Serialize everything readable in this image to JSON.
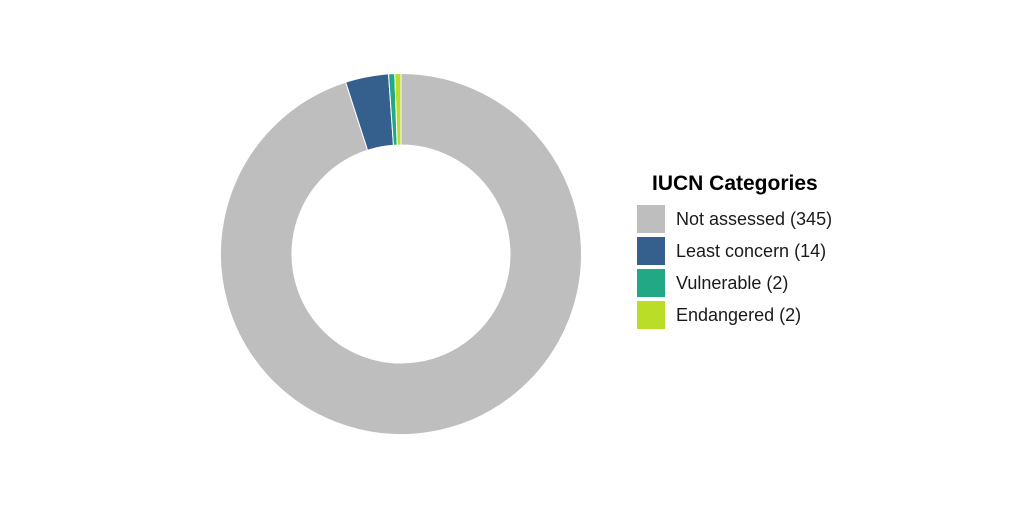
{
  "chart_data": {
    "type": "pie",
    "style": "donut",
    "legend": {
      "title": "IUCN Categories",
      "placement": "right"
    },
    "slices": [
      {
        "category": "Not assessed",
        "value": 345,
        "label": "Not assessed (345)",
        "color": "#BEBEBE"
      },
      {
        "category": "Least concern",
        "value": 14,
        "label": "Least concern (14)",
        "color": "#355F8D"
      },
      {
        "category": "Vulnerable",
        "value": 2,
        "label": "Vulnerable (2)",
        "color": "#22A884"
      },
      {
        "category": "Endangered",
        "value": 2,
        "label": "Endangered (2)",
        "color": "#BADE28"
      }
    ]
  }
}
